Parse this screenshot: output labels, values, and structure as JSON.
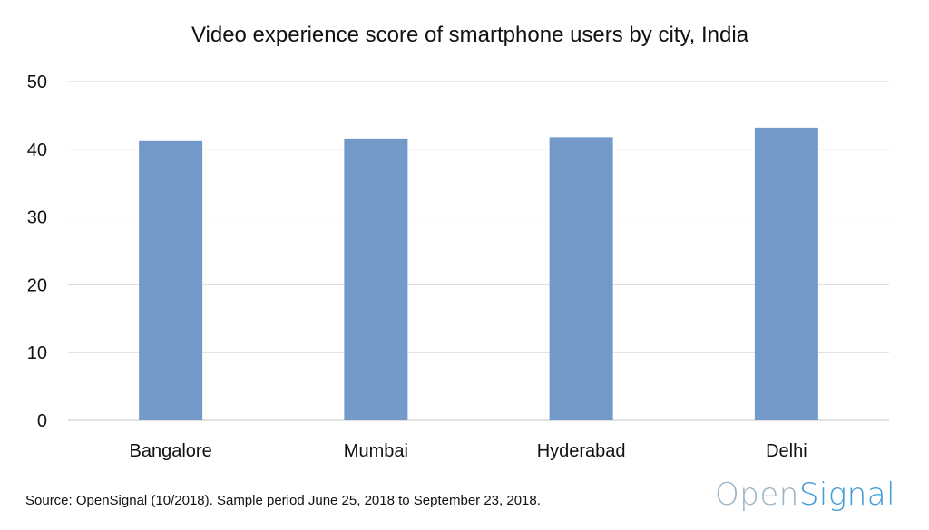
{
  "chart_data": {
    "type": "bar",
    "title": "Video experience score of smartphone users by city, India",
    "categories": [
      "Bangalore",
      "Mumbai",
      "Hyderabad",
      "Delhi"
    ],
    "values": [
      41.2,
      41.6,
      41.8,
      43.2
    ],
    "ylim": [
      0,
      50
    ],
    "yticks": [
      "0",
      "10",
      "20",
      "30",
      "40",
      "50"
    ],
    "xlabel": "",
    "ylabel": "",
    "grid": true,
    "bar_color": "#7399c9",
    "grid_color": "#d9d9d9"
  },
  "footer": {
    "source": "Source: OpenSignal (10/2018). Sample period June 25, 2018 to September 23, 2018.",
    "brand_part1": "Open",
    "brand_part2": "Signal",
    "brand_color1": "#9ab3c6",
    "brand_color2": "#3f9bd6"
  }
}
